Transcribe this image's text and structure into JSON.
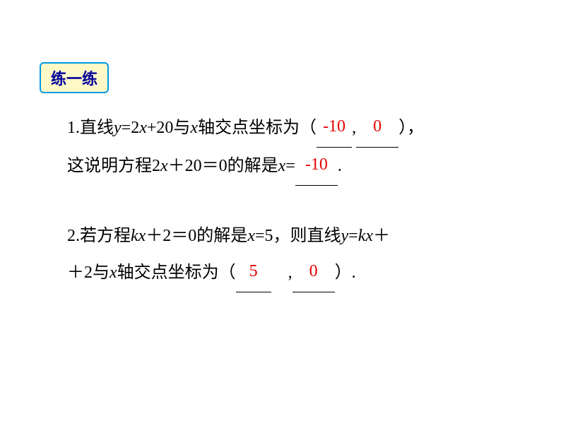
{
  "badge": "练一练",
  "problem1": {
    "prefix1": "1.直线",
    "eq1_y": "y",
    "eq1_eq": "=2",
    "eq1_x": "x",
    "eq1_rest": "+20与",
    "eq1_x2": "x",
    "mid1": "轴交点坐标为（",
    "ans1": "-10",
    "comma": ",",
    "ans2": "0",
    "end1": "），",
    "line2_prefix": "这说明方程2",
    "line2_x": "x",
    "line2_mid": "＋20＝0的解是",
    "line2_x2": "x",
    "line2_eq": "=",
    "ans3": "-10",
    "line2_end": "."
  },
  "problem2": {
    "prefix": "2.若方程",
    "k": "k",
    "x1": "x",
    "mid1": "＋2＝0的解是",
    "x2": "x",
    "eqval": "=5，则直线",
    "y": "y",
    "eq": "=",
    "k2": "k",
    "x3": "x",
    "plus": "＋",
    "line2_prefix": "＋2与",
    "line2_x": "x",
    "line2_mid": "轴交点坐标为（",
    "ans1": "5",
    "comma": ",",
    "ans2": "0",
    "line2_end": "）.",
    "spacer": "　"
  }
}
